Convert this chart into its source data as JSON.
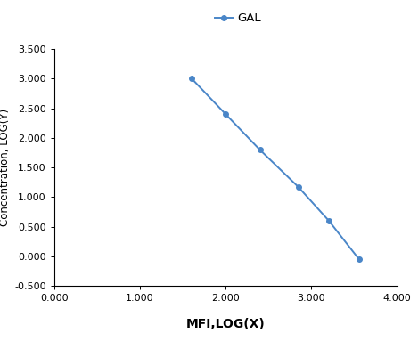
{
  "x": [
    1.602,
    2.0,
    2.398,
    2.845,
    3.204,
    3.556
  ],
  "y": [
    3.0,
    2.398,
    1.799,
    1.176,
    0.602,
    -0.046
  ],
  "line_color": "#4a86c8",
  "marker_color": "#4a86c8",
  "marker_style": "o",
  "marker_size": 4,
  "line_width": 1.4,
  "legend_label": "GAL",
  "xlabel": "MFI,LOG(X)",
  "ylabel": "Concentration, LOG(Y)",
  "xlim": [
    0.0,
    4.0
  ],
  "ylim": [
    -0.5,
    3.5
  ],
  "xticks": [
    0.0,
    1.0,
    2.0,
    3.0,
    4.0
  ],
  "yticks": [
    -0.5,
    0.0,
    0.5,
    1.0,
    1.5,
    2.0,
    2.5,
    3.0,
    3.5
  ],
  "xtick_labels": [
    "0.000",
    "1.000",
    "2.000",
    "3.000",
    "4.000"
  ],
  "ytick_labels": [
    "-0.500",
    "0.000",
    "0.500",
    "1.000",
    "1.500",
    "2.000",
    "2.500",
    "3.000",
    "3.500"
  ],
  "xlabel_fontsize": 10,
  "ylabel_fontsize": 8.5,
  "tick_fontsize": 8,
  "legend_fontsize": 9.5,
  "background_color": "#ffffff",
  "xlabel_fontweight": "bold"
}
